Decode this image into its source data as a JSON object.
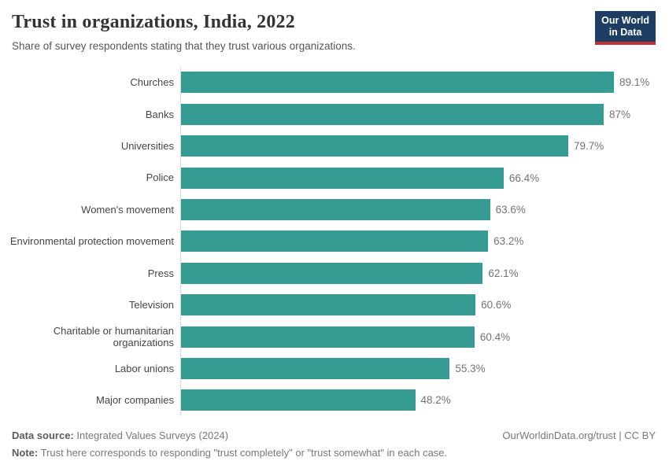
{
  "header": {
    "title": "Trust in organizations, India, 2022",
    "subtitle": "Share of survey respondents stating that they trust various organizations.",
    "logo": {
      "line1": "Our World",
      "line2": "in Data"
    }
  },
  "chart_data": {
    "type": "bar",
    "orientation": "horizontal",
    "title": "Trust in organizations, India, 2022",
    "xlabel": "",
    "ylabel": "",
    "xlim": [
      0,
      89.1
    ],
    "grid": false,
    "legend": false,
    "bar_color": "#359b93",
    "axis_line_color": "#dcdcdc",
    "categories": [
      "Churches",
      "Banks",
      "Universities",
      "Police",
      "Women's movement",
      "Environmental protection movement",
      "Press",
      "Television",
      "Charitable or humanitarian organizations",
      "Labor unions",
      "Major companies"
    ],
    "values": [
      89.1,
      87,
      79.7,
      66.4,
      63.6,
      63.2,
      62.1,
      60.6,
      60.4,
      55.3,
      48.2
    ],
    "value_labels": [
      "89.1%",
      "87%",
      "79.7%",
      "66.4%",
      "63.6%",
      "63.2%",
      "62.1%",
      "60.6%",
      "60.4%",
      "55.3%",
      "48.2%"
    ]
  },
  "footer": {
    "source_label": "Data source:",
    "source_text": " Integrated Values Surveys (2024)",
    "note_label": "Note:",
    "note_text": " Trust here corresponds to responding \"trust completely\" or \"trust somewhat\" in each case.",
    "rights": "OurWorldinData.org/trust | CC BY"
  },
  "colors": {
    "bar": "#359b93",
    "logo_navy": "#1d3d63",
    "logo_red": "#c32e38",
    "title_text": "#333333",
    "muted_text": "#787878"
  }
}
